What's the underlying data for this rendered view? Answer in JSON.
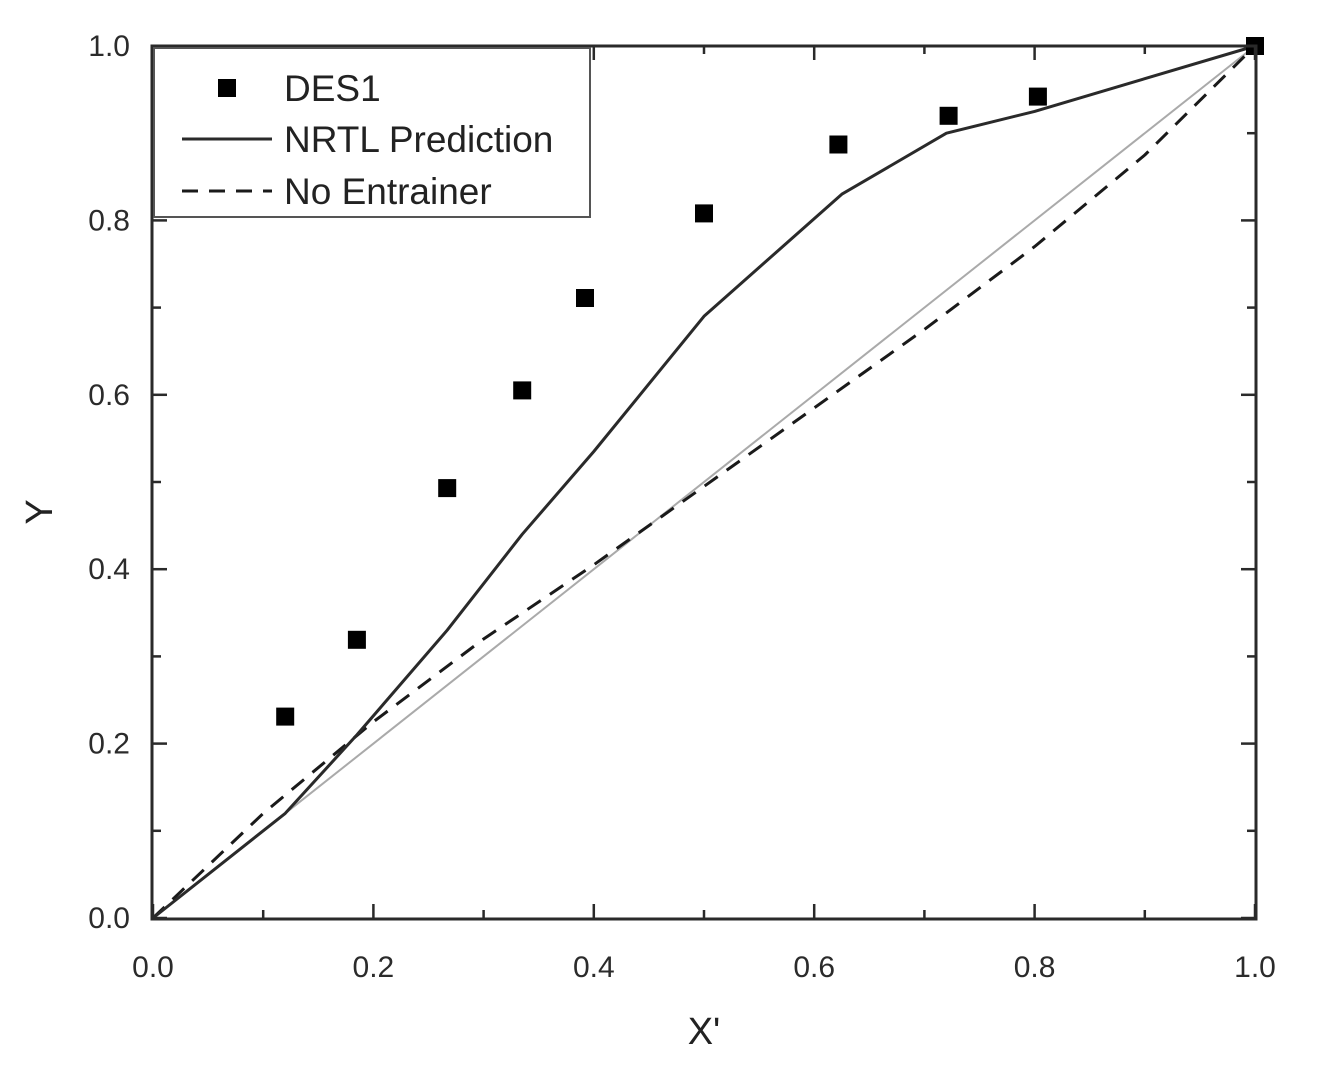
{
  "chart_data": {
    "type": "line",
    "xlabel": "X'",
    "ylabel": "Y",
    "xlim": [
      0,
      1
    ],
    "ylim": [
      0,
      1
    ],
    "x_ticks": [
      "0.0",
      "0.2",
      "0.4",
      "0.6",
      "0.8",
      "1.0"
    ],
    "y_ticks": [
      "0.0",
      "0.2",
      "0.4",
      "0.6",
      "0.8",
      "1.0"
    ],
    "grid": false,
    "legend_position": "top-left",
    "series": [
      {
        "name": "DES1",
        "kind": "scatter",
        "marker": "square",
        "color": "#000000",
        "x": [
          0.12,
          0.185,
          0.267,
          0.335,
          0.392,
          0.5,
          0.622,
          0.722,
          0.803,
          1.0
        ],
        "y": [
          0.231,
          0.319,
          0.493,
          0.605,
          0.711,
          0.808,
          0.887,
          0.92,
          0.942,
          1.0
        ]
      },
      {
        "name": "NRTL Prediction",
        "kind": "line",
        "dash": "solid",
        "color": "#2a2a2a",
        "x": [
          0.0,
          0.12,
          0.185,
          0.267,
          0.335,
          0.4,
          0.5,
          0.625,
          0.72,
          0.8,
          1.0
        ],
        "y": [
          0.0,
          0.12,
          0.21,
          0.33,
          0.44,
          0.535,
          0.69,
          0.83,
          0.9,
          0.925,
          1.0
        ]
      },
      {
        "name": "No Entrainer",
        "kind": "line",
        "dash": "dashed",
        "color": "#1a1a1a",
        "x": [
          0.0,
          0.1,
          0.2,
          0.3,
          0.4,
          0.5,
          0.6,
          0.7,
          0.8,
          0.9,
          1.0
        ],
        "y": [
          0.0,
          0.12,
          0.225,
          0.32,
          0.405,
          0.495,
          0.585,
          0.675,
          0.77,
          0.875,
          1.0
        ]
      },
      {
        "kind": "line",
        "dash": "solid",
        "color": "#aaaaaa",
        "x": [
          0.0,
          1.0
        ],
        "y": [
          0.0,
          1.0
        ]
      }
    ]
  }
}
